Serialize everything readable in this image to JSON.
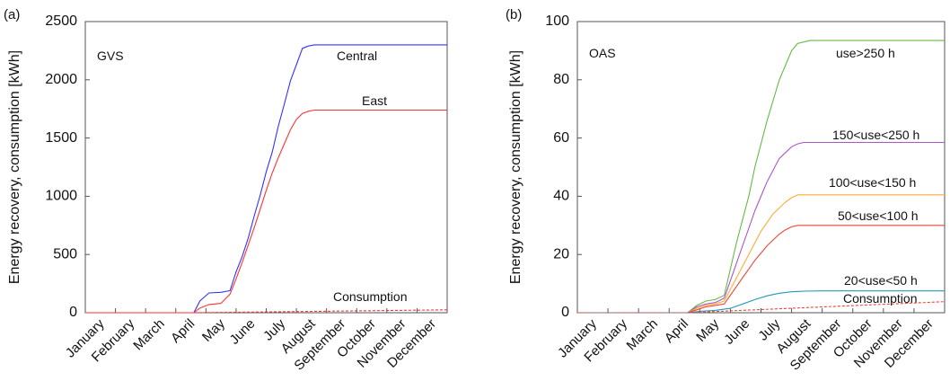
{
  "chart_data": [
    {
      "panel_label": "(a)",
      "type": "line",
      "title": "GVS",
      "xlabel": "",
      "ylabel": "Energy recovery, consumption [kWh]",
      "categories": [
        "January",
        "February",
        "March",
        "April",
        "May",
        "June",
        "July",
        "August",
        "September",
        "October",
        "November",
        "December"
      ],
      "yticks": [
        "0",
        "500",
        "1000",
        "1500",
        "2000",
        "2500"
      ],
      "ylim": [
        0,
        2500
      ],
      "xlim": [
        0,
        12
      ],
      "grid": false,
      "series": [
        {
          "name": "Central",
          "color": "#3333ff",
          "dash": "",
          "x": [
            0,
            3.6,
            3.8,
            4.1,
            4.5,
            4.8,
            5.0,
            5.2,
            5.4,
            5.6,
            5.8,
            6.0,
            6.2,
            6.4,
            6.6,
            6.8,
            7.0,
            7.2,
            7.4,
            7.6,
            7.8,
            8.0,
            12
          ],
          "y": [
            0,
            0,
            100,
            170,
            175,
            190,
            350,
            480,
            640,
            830,
            1010,
            1210,
            1380,
            1600,
            1790,
            1990,
            2130,
            2270,
            2290,
            2300,
            2300,
            2300,
            2300
          ]
        },
        {
          "name": "East",
          "color": "#ff3333",
          "dash": "",
          "x": [
            0,
            3.6,
            3.8,
            4.1,
            4.5,
            4.8,
            5.0,
            5.2,
            5.4,
            5.6,
            5.8,
            6.0,
            6.2,
            6.4,
            6.6,
            6.8,
            7.0,
            7.2,
            7.4,
            7.6,
            7.8,
            8.0,
            12
          ],
          "y": [
            0,
            0,
            40,
            70,
            80,
            160,
            290,
            430,
            580,
            730,
            890,
            1050,
            1200,
            1330,
            1450,
            1570,
            1660,
            1710,
            1730,
            1740,
            1740,
            1740,
            1740
          ]
        },
        {
          "name": "Consumption",
          "color": "#ff3333",
          "dash": "3,2",
          "x": [
            0,
            3.6,
            12
          ],
          "y": [
            0,
            0,
            25
          ]
        }
      ],
      "annotations": [
        "Central",
        "East",
        "Consumption"
      ]
    },
    {
      "panel_label": "(b)",
      "type": "line",
      "title": "OAS",
      "xlabel": "",
      "ylabel": "Energy recovery, consumption [kWh]",
      "categories": [
        "January",
        "February",
        "March",
        "April",
        "May",
        "June",
        "July",
        "August",
        "September",
        "October",
        "November",
        "December"
      ],
      "yticks": [
        "0",
        "20",
        "40",
        "60",
        "80",
        "100"
      ],
      "ylim": [
        0,
        100
      ],
      "xlim": [
        0,
        12
      ],
      "grid": false,
      "series": [
        {
          "name": "use>250 h",
          "color": "#66bb44",
          "dash": "",
          "x": [
            0,
            3.6,
            3.9,
            4.2,
            4.5,
            4.8,
            5.0,
            5.2,
            5.4,
            5.6,
            5.8,
            6.0,
            6.2,
            6.4,
            6.6,
            6.8,
            7.0,
            7.2,
            7.4,
            7.6,
            7.8,
            8.0,
            12
          ],
          "y": [
            0,
            0,
            2.5,
            4,
            4.5,
            6,
            15,
            24,
            32,
            40,
            50,
            58,
            66,
            73,
            80,
            85,
            90,
            92.5,
            93,
            93.5,
            93.5,
            93.5,
            93.5
          ]
        },
        {
          "name": "150<use<250 h",
          "color": "#aa55cc",
          "dash": "",
          "x": [
            0,
            3.6,
            3.9,
            4.2,
            4.5,
            4.8,
            5.0,
            5.2,
            5.4,
            5.6,
            5.8,
            6.0,
            6.2,
            6.4,
            6.6,
            6.8,
            7.0,
            7.2,
            7.4,
            7.6,
            7.8,
            8.0,
            12
          ],
          "y": [
            0,
            0,
            2,
            3,
            3.5,
            5,
            11,
            17,
            23,
            29,
            35,
            40,
            45,
            49,
            53,
            55,
            57,
            58,
            58.5,
            58.5,
            58.5,
            58.5,
            58.5
          ]
        },
        {
          "name": "100<use<150 h",
          "color": "#ffaa33",
          "dash": "",
          "x": [
            0,
            3.6,
            3.9,
            4.2,
            4.5,
            4.8,
            5.0,
            5.2,
            5.4,
            5.6,
            5.8,
            6.0,
            6.2,
            6.4,
            6.6,
            6.8,
            7.0,
            7.2,
            7.4,
            7.6,
            7.8,
            8.0,
            12
          ],
          "y": [
            0,
            0,
            1.5,
            2.5,
            3,
            4,
            8,
            12,
            16,
            20,
            24,
            28,
            31,
            34,
            36,
            38,
            39.5,
            40.5,
            40.5,
            40.5,
            40.5,
            40.5,
            40.5
          ]
        },
        {
          "name": "50<use<100 h",
          "color": "#ee4433",
          "dash": "",
          "x": [
            0,
            3.6,
            3.9,
            4.2,
            4.5,
            4.8,
            5.0,
            5.2,
            5.4,
            5.6,
            5.8,
            6.0,
            6.2,
            6.4,
            6.6,
            6.8,
            7.0,
            7.2,
            7.4,
            7.6,
            7.8,
            8.0,
            12
          ],
          "y": [
            0,
            0,
            1,
            2,
            2.5,
            3,
            6,
            9,
            12,
            15,
            18,
            20.5,
            23,
            25,
            27,
            28.5,
            29.5,
            30,
            30,
            30,
            30,
            30,
            30
          ]
        },
        {
          "name": "20<use<50 h",
          "color": "#2299bb",
          "dash": "",
          "x": [
            0,
            3.6,
            4.0,
            4.5,
            5.0,
            5.4,
            5.8,
            6.2,
            6.6,
            7.0,
            7.4,
            8.0,
            12
          ],
          "y": [
            0,
            0,
            0.5,
            0.8,
            1.5,
            3,
            4.5,
            5.8,
            6.7,
            7.2,
            7.4,
            7.5,
            7.5
          ]
        },
        {
          "name": "Consumption",
          "color": "#ee4433",
          "dash": "3,2",
          "x": [
            0,
            3.6,
            12
          ],
          "y": [
            0,
            0,
            3.8
          ]
        }
      ],
      "annotations": [
        "use>250 h",
        "150<use<250 h",
        "100<use<150 h",
        "50<use<100 h",
        "20<use<50 h",
        "Consumption"
      ]
    }
  ]
}
